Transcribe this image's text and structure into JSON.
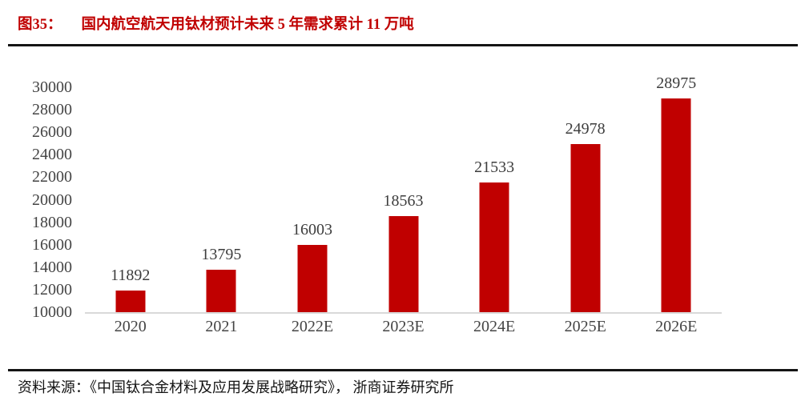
{
  "figure": {
    "label": "图35：",
    "title": "国内航空航天用钛材预计未来 5 年需求累计 11 万吨"
  },
  "source": {
    "text": "资料来源：《中国钛合金材料及应用发展战略研究》， 浙商证券研究所"
  },
  "colors": {
    "accent_red": "#c00000",
    "bar_red": "#c00000",
    "label_gray": "#444444",
    "axis_line_gray": "#d9d9d9",
    "rule_black": "#141414"
  },
  "chart_data": {
    "type": "bar",
    "title": "国内航空航天用钛材预计未来 5 年需求累计 11 万吨",
    "categories": [
      "2020",
      "2021",
      "2022E",
      "2023E",
      "2024E",
      "2025E",
      "2026E"
    ],
    "values": [
      11892,
      13795,
      16003,
      18563,
      21533,
      24978,
      28975
    ],
    "data_labels": [
      11892,
      13795,
      16003,
      18563,
      21533,
      24978,
      28975
    ],
    "xlabel": "",
    "ylabel": "",
    "ylim": [
      10000,
      30000
    ],
    "yticks": [
      10000,
      12000,
      14000,
      16000,
      18000,
      20000,
      22000,
      24000,
      26000,
      28000,
      30000
    ],
    "grid": false,
    "legend_position": "none",
    "bar_color": "#c00000"
  }
}
